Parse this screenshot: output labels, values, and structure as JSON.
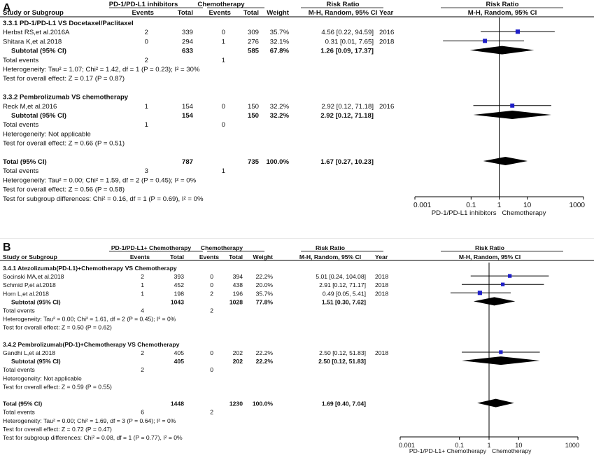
{
  "chart_data": {
    "type": "forest",
    "axis": {
      "scale": "log",
      "ticks": [
        {
          "v": 0.001,
          "t": "0.001"
        },
        {
          "v": 0.1,
          "t": "0.1"
        },
        {
          "v": 1,
          "t": "1"
        },
        {
          "v": 10,
          "t": "10"
        },
        {
          "v": 1000,
          "t": "1000"
        }
      ],
      "xlim": [
        0.001,
        1000
      ],
      "null_line": 1
    },
    "panels": [
      {
        "label": "A",
        "columns": {
          "study": "Study or Subgroup",
          "group1": "PD-1/PD-L1 inhibitors",
          "group2": "Chemotherapy",
          "events": "Events",
          "total": "Total",
          "weight": "Weight",
          "rr_title": "Risk Ratio",
          "rr_method": "M-H, Random, 95% CI",
          "year": "Year"
        },
        "plot_title": "Risk Ratio",
        "plot_method": "M-H, Random, 95% CI",
        "axis_left_label": "PD-1/PD-L1 inhibitors",
        "axis_right_label": "Chemotherapy",
        "subgroups": [
          {
            "title": "3.3.1 PD-1/PD-L1 VS Docetaxel/Paclitaxel",
            "studies": [
              {
                "name": "Herbst RS,et al.2016A",
                "e1": "2",
                "t1": "339",
                "e2": "0",
                "t2": "309",
                "weight": "35.7%",
                "ci_text": "4.56 [0.22, 94.59]",
                "year": "2016",
                "rr": 4.56,
                "lo": 0.22,
                "hi": 94.59
              },
              {
                "name": "Shitara K,et al.2018",
                "e1": "0",
                "t1": "294",
                "e2": "1",
                "t2": "276",
                "weight": "32.1%",
                "ci_text": "0.31 [0.01, 7.65]",
                "year": "2018",
                "rr": 0.31,
                "lo": 0.01,
                "hi": 7.65
              }
            ],
            "subtotal": {
              "label": "Subtotal (95% CI)",
              "t1": "633",
              "t2": "585",
              "weight": "67.8%",
              "ci_text": "1.26 [0.09, 17.37]",
              "rr": 1.26,
              "lo": 0.09,
              "hi": 17.37
            },
            "total_events": {
              "label": "Total events",
              "e1": "2",
              "e2": "1"
            },
            "heterogeneity": "Heterogeneity: Tau² = 1.07; Chi² = 1.42, df = 1 (P = 0.23); I² = 30%",
            "overall_effect": "Test for overall effect: Z = 0.17 (P = 0.87)"
          },
          {
            "title": "3.3.2 Pembrolizumab VS chemotherapy",
            "studies": [
              {
                "name": "Reck M,et al.2016",
                "e1": "1",
                "t1": "154",
                "e2": "0",
                "t2": "150",
                "weight": "32.2%",
                "ci_text": "2.92 [0.12, 71.18]",
                "year": "2016",
                "rr": 2.92,
                "lo": 0.12,
                "hi": 71.18
              }
            ],
            "subtotal": {
              "label": "Subtotal (95% CI)",
              "t1": "154",
              "t2": "150",
              "weight": "32.2%",
              "ci_text": "2.92 [0.12, 71.18]",
              "rr": 2.92,
              "lo": 0.12,
              "hi": 71.18
            },
            "total_events": {
              "label": "Total events",
              "e1": "1",
              "e2": "0"
            },
            "heterogeneity": "Heterogeneity: Not applicable",
            "overall_effect": "Test for overall effect: Z = 0.66 (P = 0.51)"
          }
        ],
        "total": {
          "label": "Total (95% CI)",
          "t1": "787",
          "t2": "735",
          "weight": "100.0%",
          "ci_text": "1.67 [0.27, 10.23]",
          "rr": 1.67,
          "lo": 0.27,
          "hi": 10.23
        },
        "total_events": {
          "label": "Total events",
          "e1": "3",
          "e2": "1"
        },
        "heterogeneity": "Heterogeneity: Tau² = 0.00; Chi² = 1.59, df = 2 (P = 0.45); I² = 0%",
        "overall_effect": "Test for overall effect: Z = 0.56 (P = 0.58)",
        "subgroup_diff": "Test for subgroup differences: Chi² = 0.16, df = 1 (P = 0.69), I² = 0%"
      },
      {
        "label": "B",
        "columns": {
          "study": "Study or Subgroup",
          "group1": "PD-1/PD-L1+ Chemotherapy",
          "group2": "Chemotherapy",
          "events": "Events",
          "total": "Total",
          "weight": "Weight",
          "rr_title": "Risk Ratio",
          "rr_method": "M-H, Random, 95% CI",
          "year": "Year"
        },
        "plot_title": "Risk Ratio",
        "plot_method": "M-H, Random, 95% CI",
        "axis_left_label": "PD-1/PD-L1+ Chemotherapy",
        "axis_right_label": "Chemotherapy",
        "subgroups": [
          {
            "title": "3.4.1 Atezolizumab(PD-L1)+Chemotherapy VS Chemotherapy",
            "studies": [
              {
                "name": "Socinski MA,et al.2018",
                "e1": "2",
                "t1": "393",
                "e2": "0",
                "t2": "394",
                "weight": "22.2%",
                "ci_text": "5.01 [0.24, 104.08]",
                "year": "2018",
                "rr": 5.01,
                "lo": 0.24,
                "hi": 104.08
              },
              {
                "name": "Schmid P,et al.2018",
                "e1": "1",
                "t1": "452",
                "e2": "0",
                "t2": "438",
                "weight": "20.0%",
                "ci_text": "2.91 [0.12, 71.17]",
                "year": "2018",
                "rr": 2.91,
                "lo": 0.12,
                "hi": 71.17
              },
              {
                "name": "Horn L,et al.2018",
                "e1": "1",
                "t1": "198",
                "e2": "2",
                "t2": "196",
                "weight": "35.7%",
                "ci_text": "0.49 [0.05, 5.41]",
                "year": "2018",
                "rr": 0.49,
                "lo": 0.05,
                "hi": 5.41
              }
            ],
            "subtotal": {
              "label": "Subtotal (95% CI)",
              "t1": "1043",
              "t2": "1028",
              "weight": "77.8%",
              "ci_text": "1.51 [0.30, 7.62]",
              "rr": 1.51,
              "lo": 0.3,
              "hi": 7.62
            },
            "total_events": {
              "label": "Total events",
              "e1": "4",
              "e2": "2"
            },
            "heterogeneity": "Heterogeneity: Tau² = 0.00; Chi² = 1.61, df = 2 (P = 0.45); I² = 0%",
            "overall_effect": "Test for overall effect: Z = 0.50 (P = 0.62)"
          },
          {
            "title": "3.4.2 Pembrolizumab(PD-1)+Chemotherapy VS Chemotherapy",
            "studies": [
              {
                "name": "Gandhi L,et al.2018",
                "e1": "2",
                "t1": "405",
                "e2": "0",
                "t2": "202",
                "weight": "22.2%",
                "ci_text": "2.50 [0.12, 51.83]",
                "year": "2018",
                "rr": 2.5,
                "lo": 0.12,
                "hi": 51.83
              }
            ],
            "subtotal": {
              "label": "Subtotal (95% CI)",
              "t1": "405",
              "t2": "202",
              "weight": "22.2%",
              "ci_text": "2.50 [0.12, 51.83]",
              "rr": 2.5,
              "lo": 0.12,
              "hi": 51.83
            },
            "total_events": {
              "label": "Total events",
              "e1": "2",
              "e2": "0"
            },
            "heterogeneity": "Heterogeneity: Not applicable",
            "overall_effect": "Test for overall effect: Z = 0.59 (P = 0.55)"
          }
        ],
        "total": {
          "label": "Total (95% CI)",
          "t1": "1448",
          "t2": "1230",
          "weight": "100.0%",
          "ci_text": "1.69 [0.40, 7.04]",
          "rr": 1.69,
          "lo": 0.4,
          "hi": 7.04
        },
        "total_events": {
          "label": "Total events",
          "e1": "6",
          "e2": "2"
        },
        "heterogeneity": "Heterogeneity: Tau² = 0.00; Chi² = 1.69, df = 3 (P = 0.64); I² = 0%",
        "overall_effect": "Test for overall effect: Z = 0.72 (P = 0.47)",
        "subgroup_diff": "Test for subgroup differences: Chi² = 0.08, df = 1 (P = 0.77), I² = 0%"
      }
    ],
    "colors": {
      "study_marker": "#1f1fc8",
      "diamond": "#000000",
      "text": "#111111"
    }
  }
}
